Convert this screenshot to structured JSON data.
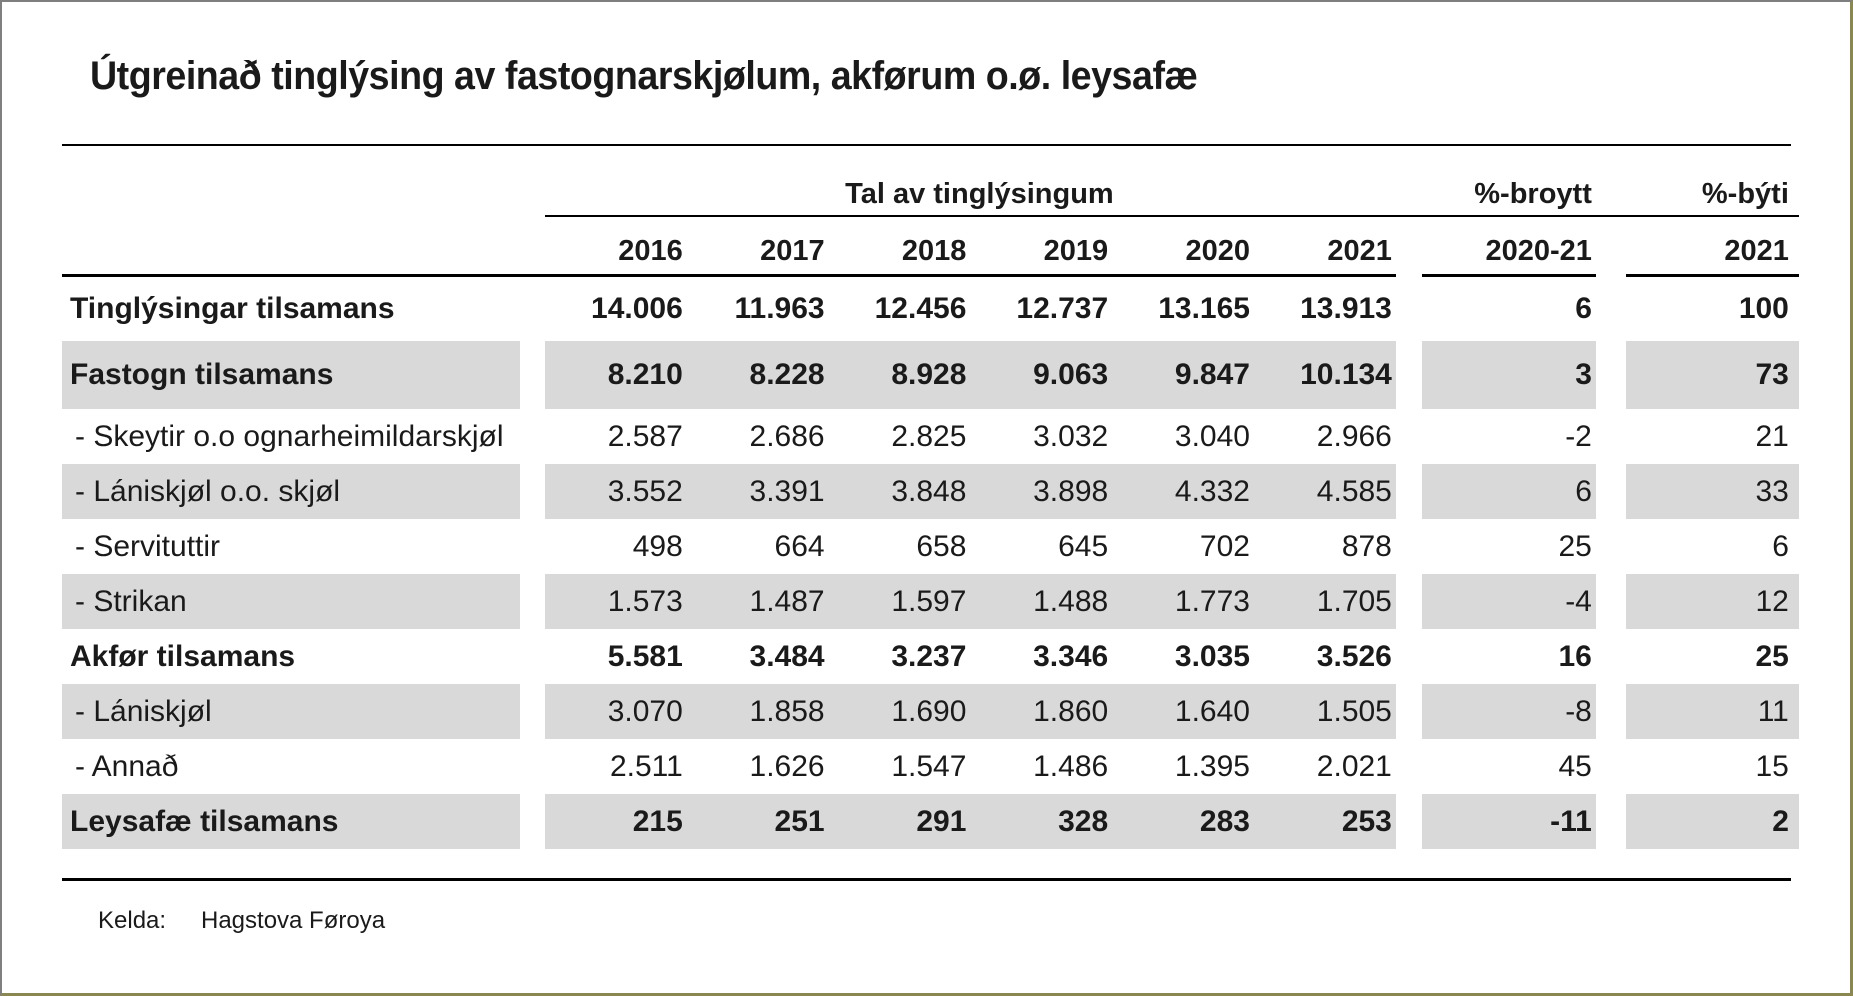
{
  "page": {
    "title": "Útgreinað tinglýsing av fastognarskjølum, akførum o.ø. leysafæ",
    "source_label": "Kelda:",
    "source_value": "Hagstova Føroya"
  },
  "table": {
    "group_headers": {
      "counts": "Tal av tinglýsingum",
      "change": "%-broytt",
      "share": "%-býti"
    },
    "year_columns": [
      "2016",
      "2017",
      "2018",
      "2019",
      "2020",
      "2021"
    ],
    "change_column": "2020-21",
    "share_column": "2021",
    "rows": [
      {
        "label": "Tinglýsingar tilsamans",
        "bold": true,
        "shaded": false,
        "values": [
          "14.006",
          "11.963",
          "12.456",
          "12.737",
          "13.165",
          "13.913"
        ],
        "change": "6",
        "share": "100"
      },
      {
        "label": "Fastogn tilsamans",
        "bold": true,
        "shaded": true,
        "values": [
          "8.210",
          "8.228",
          "8.928",
          "9.063",
          "9.847",
          "10.134"
        ],
        "change": "3",
        "share": "73"
      },
      {
        "label": "- Skeytir o.o ognarheimildarskjøl",
        "bold": false,
        "shaded": false,
        "values": [
          "2.587",
          "2.686",
          "2.825",
          "3.032",
          "3.040",
          "2.966"
        ],
        "change": "-2",
        "share": "21"
      },
      {
        "label": "- Lániskjøl o.o. skjøl",
        "bold": false,
        "shaded": true,
        "values": [
          "3.552",
          "3.391",
          "3.848",
          "3.898",
          "4.332",
          "4.585"
        ],
        "change": "6",
        "share": "33"
      },
      {
        "label": "- Servituttir",
        "bold": false,
        "shaded": false,
        "values": [
          "498",
          "664",
          "658",
          "645",
          "702",
          "878"
        ],
        "change": "25",
        "share": "6"
      },
      {
        "label": "- Strikan",
        "bold": false,
        "shaded": true,
        "values": [
          "1.573",
          "1.487",
          "1.597",
          "1.488",
          "1.773",
          "1.705"
        ],
        "change": "-4",
        "share": "12"
      },
      {
        "label": "Akfør tilsamans",
        "bold": true,
        "shaded": false,
        "values": [
          "5.581",
          "3.484",
          "3.237",
          "3.346",
          "3.035",
          "3.526"
        ],
        "change": "16",
        "share": "25"
      },
      {
        "label": "- Lániskjøl",
        "bold": false,
        "shaded": true,
        "values": [
          "3.070",
          "1.858",
          "1.690",
          "1.860",
          "1.640",
          "1.505"
        ],
        "change": "-8",
        "share": "11"
      },
      {
        "label": "- Annað",
        "bold": false,
        "shaded": false,
        "values": [
          "2.511",
          "1.626",
          "1.547",
          "1.486",
          "1.395",
          "2.021"
        ],
        "change": "45",
        "share": "15"
      },
      {
        "label": "Leysafæ tilsamans",
        "bold": true,
        "shaded": true,
        "values": [
          "215",
          "251",
          "291",
          "328",
          "283",
          "253"
        ],
        "change": "-11",
        "share": "2"
      }
    ]
  },
  "colors": {
    "shaded_row": "#d9d9d9",
    "rule": "#000000",
    "border_top_left": "#7f7f7f",
    "border_bottom_right": "#8a8751",
    "text": "#1a1a1a"
  },
  "chart_data": {
    "type": "table",
    "title": "Útgreinað tinglýsing av fastognarskjølum, akførum o.ø. leysafæ",
    "column_groups": [
      "Tal av tinglýsingum (2016-2021)",
      "%-broytt 2020-21",
      "%-býti 2021"
    ],
    "columns": [
      "",
      "2016",
      "2017",
      "2018",
      "2019",
      "2020",
      "2021",
      "%-broytt 2020-21",
      "%-býti 2021"
    ],
    "rows": [
      [
        "Tinglýsingar tilsamans",
        14006,
        11963,
        12456,
        12737,
        13165,
        13913,
        6,
        100
      ],
      [
        "Fastogn tilsamans",
        8210,
        8228,
        8928,
        9063,
        9847,
        10134,
        3,
        73
      ],
      [
        "Skeytir o.o ognarheimildarskjøl",
        2587,
        2686,
        2825,
        3032,
        3040,
        2966,
        -2,
        21
      ],
      [
        "Lániskjøl o.o. skjøl",
        3552,
        3391,
        3848,
        3898,
        4332,
        4585,
        6,
        33
      ],
      [
        "Servituttir",
        498,
        664,
        658,
        645,
        702,
        878,
        25,
        6
      ],
      [
        "Strikan",
        1573,
        1487,
        1597,
        1488,
        1773,
        1705,
        -4,
        12
      ],
      [
        "Akfør tilsamans",
        5581,
        3484,
        3237,
        3346,
        3035,
        3526,
        16,
        25
      ],
      [
        "Lániskjøl",
        3070,
        1858,
        1690,
        1860,
        1640,
        1505,
        -8,
        11
      ],
      [
        "Annað",
        2511,
        1626,
        1547,
        1486,
        1395,
        2021,
        45,
        15
      ],
      [
        "Leysafæ tilsamans",
        215,
        251,
        291,
        328,
        283,
        253,
        -11,
        2
      ]
    ],
    "source": "Kelda: Hagstova Føroya"
  }
}
